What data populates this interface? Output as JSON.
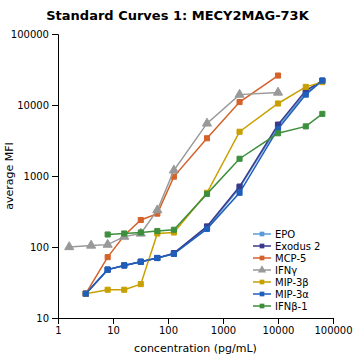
{
  "chart_data": {
    "type": "line",
    "title": "Standard Curves 1: MECY2MAG-73K",
    "xlabel": "concentration (pg/mL)",
    "ylabel": "average MFI",
    "log": true,
    "grid": false,
    "legend": "lower right",
    "xlim": [
      1,
      100000
    ],
    "ylim": [
      10,
      100000
    ],
    "xticks": [
      1,
      10,
      100,
      1000,
      10000,
      100000
    ],
    "yticks": [
      10,
      100,
      1000,
      10000,
      100000
    ],
    "series": [
      {
        "name": "EPO",
        "color": "#5b9bd5",
        "marker": "square",
        "x": [
          3.2,
          8,
          16,
          32,
          64,
          128,
          512,
          2000,
          10000,
          32000,
          64000
        ],
        "values": [
          22,
          48,
          55,
          62,
          70,
          80,
          185,
          680,
          5000,
          15000,
          22000
        ]
      },
      {
        "name": "Exodus 2",
        "color": "#3a3a8c",
        "marker": "square",
        "x": [
          3.2,
          8,
          16,
          32,
          64,
          128,
          512,
          2000,
          10000,
          32000,
          64000
        ],
        "values": [
          22,
          48,
          55,
          62,
          70,
          82,
          195,
          710,
          5300,
          16000,
          22000
        ]
      },
      {
        "name": "MCP-5",
        "color": "#d4622a",
        "marker": "square",
        "x": [
          3.2,
          8,
          16,
          32,
          64,
          128,
          512,
          2000,
          10000
        ],
        "values": [
          22,
          72,
          145,
          240,
          295,
          980,
          3400,
          11000,
          26000
        ]
      },
      {
        "name": "IFNγ",
        "color": "#999999",
        "marker": "triangle",
        "x": [
          1.6,
          4,
          8,
          16,
          32,
          64,
          128,
          512,
          2000,
          10000
        ],
        "values": [
          100,
          105,
          108,
          140,
          155,
          330,
          1200,
          5500,
          14000,
          15000
        ]
      },
      {
        "name": "MIP-3β",
        "color": "#c8a000",
        "marker": "square",
        "x": [
          3.2,
          8,
          16,
          32,
          64,
          128,
          512,
          2000,
          10000,
          32000,
          64000
        ],
        "values": [
          22,
          25,
          25,
          30,
          155,
          160,
          580,
          4200,
          10500,
          18000,
          21000
        ]
      },
      {
        "name": "MIP-3α",
        "color": "#1f5fbb",
        "marker": "square",
        "x": [
          3.2,
          8,
          16,
          32,
          64,
          128,
          512,
          2000,
          10000,
          32000,
          64000
        ],
        "values": [
          22,
          48,
          55,
          62,
          70,
          80,
          180,
          580,
          4600,
          14000,
          22000
        ]
      },
      {
        "name": "IFNβ-1",
        "color": "#3d8f3d",
        "marker": "square",
        "x": [
          8,
          16,
          32,
          64,
          128,
          512,
          2000,
          10000,
          32000,
          64000
        ],
        "values": [
          150,
          155,
          160,
          168,
          175,
          560,
          1750,
          4000,
          5000,
          7500
        ]
      }
    ]
  }
}
